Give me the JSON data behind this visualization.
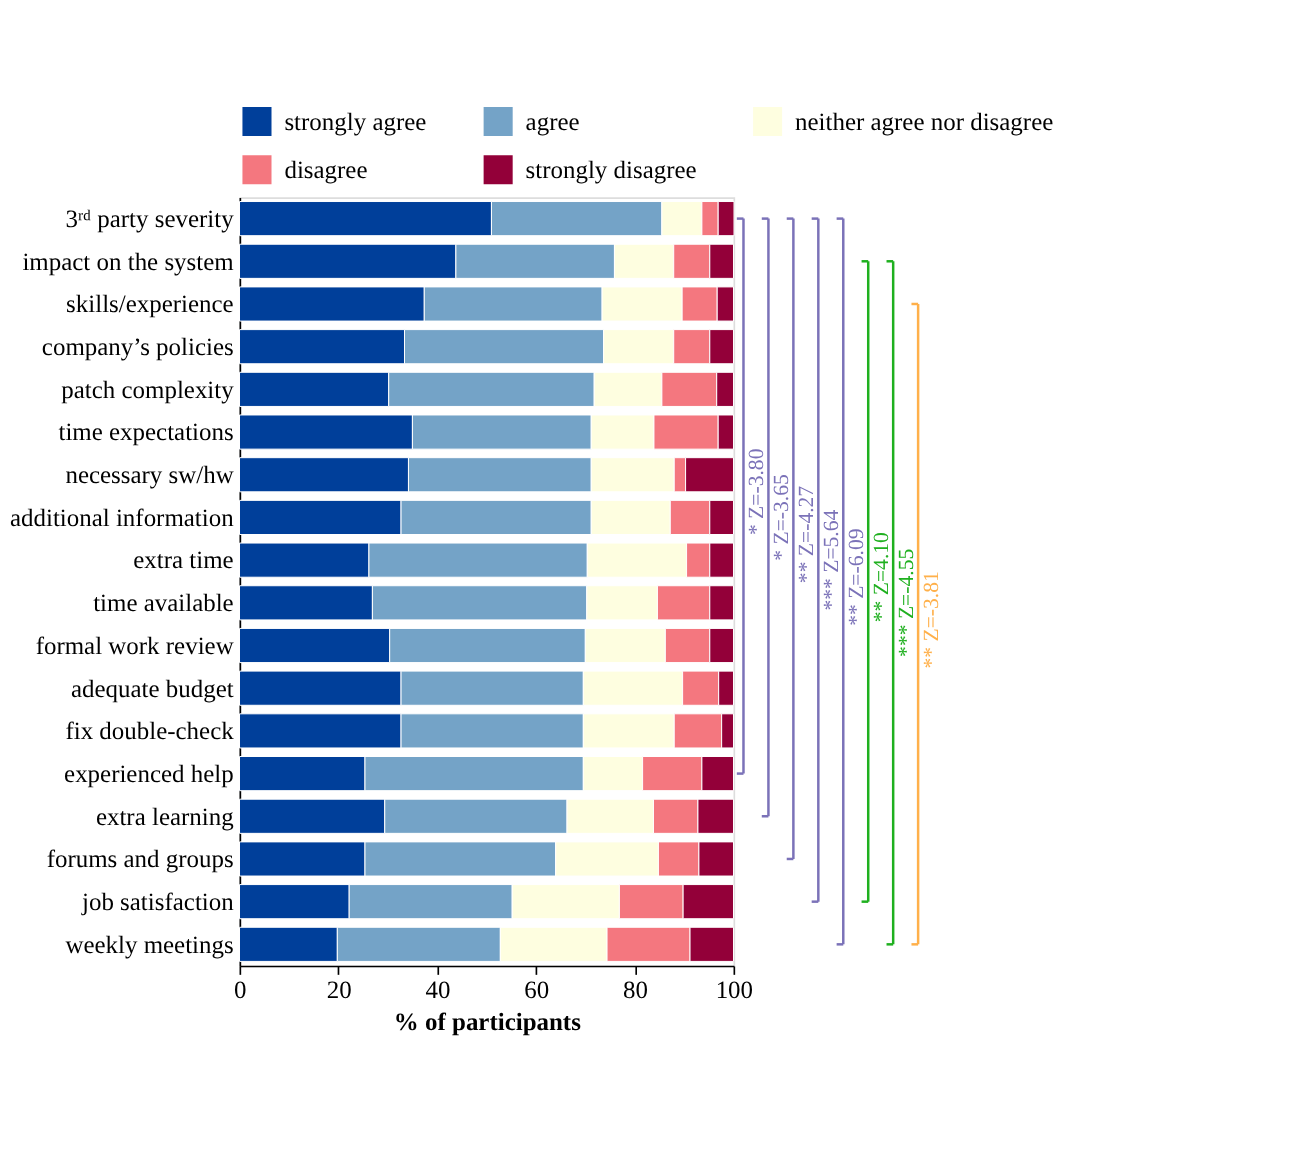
{
  "chart_data": {
    "type": "bar",
    "orientation": "horizontal",
    "stacked": true,
    "xlabel": "% of participants",
    "categories": [
      "3ʳᵈ party severity",
      "impact on the system",
      "skills/experience",
      "company’s policies",
      "patch complexity",
      "time expectations",
      "necessary sw/hw",
      "additional information",
      "extra time",
      "time available",
      "formal work review",
      "adequate budget",
      "fix double-check",
      "experienced help",
      "extra learning",
      "forums and groups",
      "job satisfaction",
      "weekly meetings"
    ],
    "series": [
      {
        "name": "strongly agree",
        "color": "#003f9a",
        "values": [
          51.0,
          43.8,
          37.4,
          33.4,
          30.2,
          35.0,
          34.2,
          32.7,
          26.2,
          26.9,
          30.4,
          32.7,
          32.7,
          25.4,
          29.4,
          25.4,
          22.2,
          19.8
        ]
      },
      {
        "name": "agree",
        "color": "#74a3c7",
        "values": [
          34.5,
          32.1,
          36.0,
          40.3,
          41.6,
          36.2,
          37.0,
          38.5,
          44.2,
          43.4,
          39.6,
          36.9,
          36.9,
          44.2,
          36.9,
          38.6,
          33.0,
          33.0
        ]
      },
      {
        "name": "neither agree nor disagree",
        "color": "#fefee0",
        "values": [
          8.1,
          12.0,
          16.2,
          14.2,
          13.7,
          12.7,
          16.8,
          16.0,
          20.1,
          14.3,
          16.2,
          20.1,
          18.4,
          12.0,
          17.5,
          20.8,
          21.7,
          21.6
        ]
      },
      {
        "name": "disagree",
        "color": "#f4777f",
        "values": [
          3.3,
          7.3,
          7.1,
          7.3,
          11.1,
          13.0,
          2.3,
          8.0,
          4.7,
          10.6,
          9.0,
          7.3,
          9.6,
          12.0,
          9.0,
          8.2,
          12.9,
          16.8
        ]
      },
      {
        "name": "strongly disagree",
        "color": "#930039",
        "values": [
          3.2,
          4.8,
          3.3,
          4.8,
          3.4,
          3.1,
          9.7,
          4.8,
          4.8,
          4.8,
          4.8,
          3.0,
          2.4,
          6.4,
          7.2,
          7.0,
          10.2,
          8.8
        ]
      }
    ],
    "xlim": [
      0,
      100
    ],
    "xticks": [
      0,
      20,
      40,
      60,
      80,
      100
    ],
    "grid": false,
    "legend": "top",
    "annotations": [
      "* Z=-3.80",
      "* Z=-3.65",
      "** Z=-4.27",
      "*** Z=5.64",
      "** Z=-6.09",
      "** Z=4.10",
      "*** Z=-4.55",
      "** Z=-3.81"
    ]
  }
}
